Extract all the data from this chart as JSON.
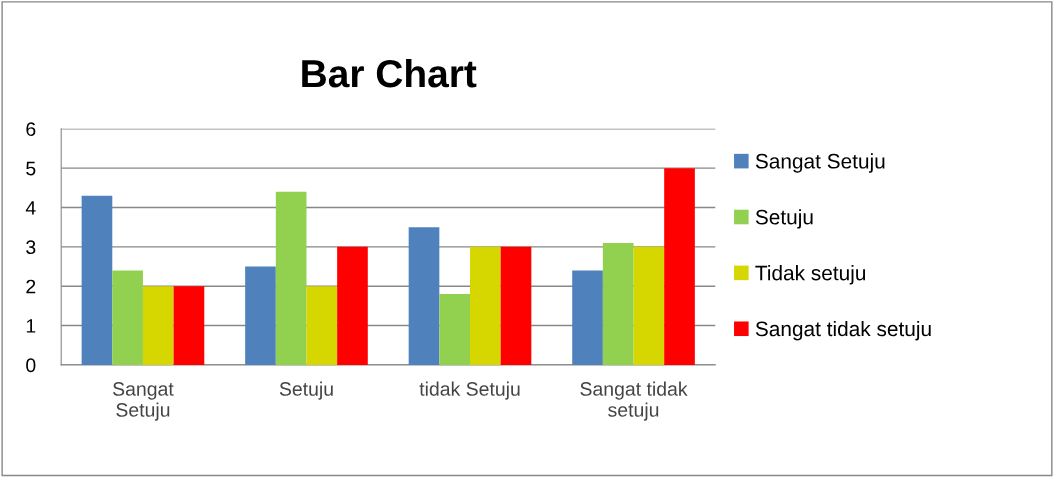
{
  "chart_data": {
    "type": "bar",
    "title": "Bar Chart",
    "categories": [
      "Sangat\nSetuju",
      "Setuju",
      "tidak Setuju",
      "Sangat tidak\nsetuju"
    ],
    "series": [
      {
        "name": "Sangat Setuju",
        "color": "#4f81bd",
        "values": [
          4.3,
          2.5,
          3.5,
          2.4
        ]
      },
      {
        "name": "Setuju",
        "color": "#92d050",
        "values": [
          2.4,
          4.4,
          1.8,
          3.1
        ]
      },
      {
        "name": "Tidak setuju",
        "color": "#d6d600",
        "values": [
          2,
          2,
          3,
          3
        ]
      },
      {
        "name": "Sangat tidak setuju",
        "color": "#ff0000",
        "values": [
          2,
          3,
          3,
          5
        ]
      }
    ],
    "ylim": [
      0,
      6
    ],
    "yticks": [
      0,
      1,
      2,
      3,
      4,
      5,
      6
    ],
    "grid": "y",
    "legend": "right"
  }
}
